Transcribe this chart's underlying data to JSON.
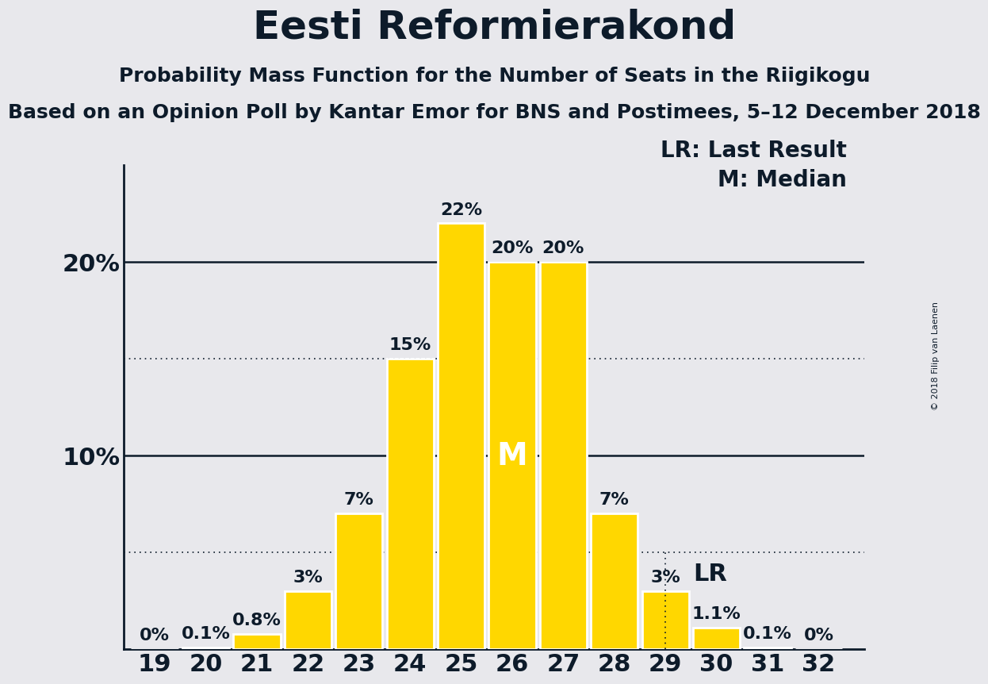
{
  "title": "Eesti Reformierakond",
  "subtitle": "Probability Mass Function for the Number of Seats in the Riigikogu",
  "subsubtitle": "Based on an Opinion Poll by Kantar Emor for BNS and Postimees, 5–12 December 2018",
  "copyright": "© 2018 Filip van Laenen",
  "seats": [
    19,
    20,
    21,
    22,
    23,
    24,
    25,
    26,
    27,
    28,
    29,
    30,
    31,
    32
  ],
  "probabilities": [
    0.0,
    0.1,
    0.8,
    3.0,
    7.0,
    15.0,
    22.0,
    20.0,
    20.0,
    7.0,
    3.0,
    1.1,
    0.1,
    0.0
  ],
  "bar_labels": [
    "0%",
    "0.1%",
    "0.8%",
    "3%",
    "7%",
    "15%",
    "22%",
    "20%",
    "20%",
    "7%",
    "3%",
    "1.1%",
    "0.1%",
    "0%"
  ],
  "bar_color": "#FFD700",
  "bar_edge_color": "#FFFFFF",
  "background_color": "#E8E8EC",
  "text_color": "#0D1B2A",
  "solid_grid_lines": [
    10,
    20
  ],
  "dotted_grid_lines": [
    5,
    15
  ],
  "LR_seat": 29,
  "median_seat": 26,
  "legend_lr": "LR: Last Result",
  "legend_m": "M: Median",
  "ylim": [
    0,
    25
  ],
  "title_fontsize": 36,
  "subtitle_fontsize": 18,
  "subsubtitle_fontsize": 18,
  "axis_fontsize": 22,
  "bar_label_fontsize": 16,
  "legend_fontsize": 20,
  "median_label_fontsize": 28,
  "bar_width": 0.92
}
